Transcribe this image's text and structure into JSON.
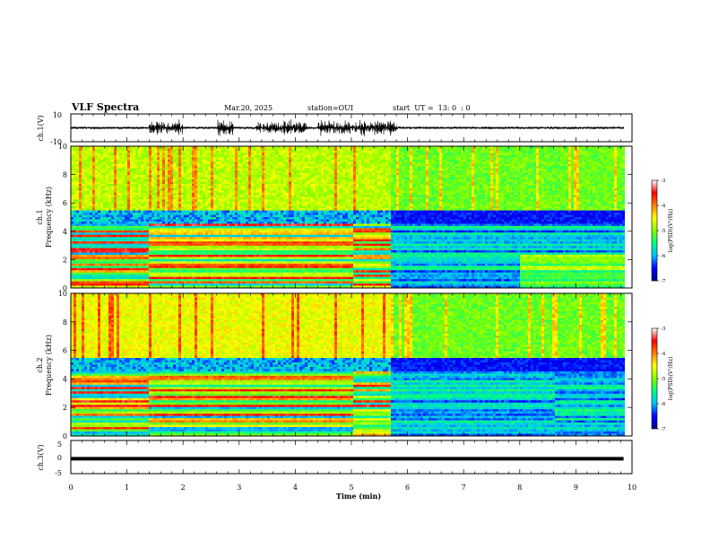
{
  "header": {
    "title": "VLF Spectra",
    "date": "Mar.20, 2025",
    "station": "station=OUI",
    "start": "start  UT =  13: 0  : 0"
  },
  "chart_data": [
    {
      "type": "line",
      "panel": "ch1-waveform",
      "ylabel": "ch.1(V)",
      "ylim": [
        -10,
        10
      ],
      "yticks": [
        10,
        -10
      ],
      "xlim": [
        0,
        10
      ],
      "burst_intervals_min": [
        [
          1.4,
          2.0
        ],
        [
          2.6,
          2.9
        ],
        [
          3.3,
          4.2
        ],
        [
          4.4,
          5.8
        ]
      ],
      "burst_amplitude_v": 5,
      "quiet_amplitude_v": 0.8,
      "end_min": 9.85
    },
    {
      "type": "heatmap",
      "panel": "ch1-spectrogram",
      "ylabel": "ch.1\nFrequency (kHz)",
      "ylim": [
        0,
        10
      ],
      "yticks": [
        0,
        2,
        4,
        6,
        8,
        10
      ],
      "xlim": [
        0,
        10
      ],
      "z_label": "log(PSD)(V²/Hz)",
      "z_range": [
        -7,
        -3
      ],
      "z_ticks": [
        -3,
        -4,
        -5,
        -6,
        -7
      ],
      "segment_boundaries_min": [
        1.35,
        5.0,
        5.7,
        9.85
      ]
    },
    {
      "type": "heatmap",
      "panel": "ch2-spectrogram",
      "ylabel": "ch.2\nFrequency (kHz)",
      "ylim": [
        0,
        10
      ],
      "yticks": [
        0,
        2,
        4,
        6,
        8,
        10
      ],
      "xlim": [
        0,
        10
      ],
      "z_label": "log(PSD)(V²/Hz)",
      "z_range": [
        -7,
        -3
      ],
      "z_ticks": [
        -3,
        -4,
        -5,
        -6,
        -7
      ],
      "segment_boundaries_min": [
        1.35,
        5.0,
        5.7,
        8.6,
        9.85
      ]
    },
    {
      "type": "line",
      "panel": "ch3-waveform",
      "ylabel": "ch.3(V)",
      "ylim": [
        -5,
        5
      ],
      "yticks": [
        5,
        0,
        -5
      ],
      "xlim": [
        0,
        10
      ],
      "values_v": [
        -0.5,
        -0.5
      ],
      "end_min": 9.85
    }
  ],
  "x_axis": {
    "label": "Time (min)",
    "ticks": [
      0,
      1,
      2,
      3,
      4,
      5,
      6,
      7,
      8,
      9,
      10
    ]
  },
  "colors": {
    "colormap": [
      "#00008b",
      "#0000ff",
      "#00bfff",
      "#00ff80",
      "#80ff00",
      "#ffff00",
      "#ff8000",
      "#ff0000",
      "#ffffff"
    ]
  }
}
